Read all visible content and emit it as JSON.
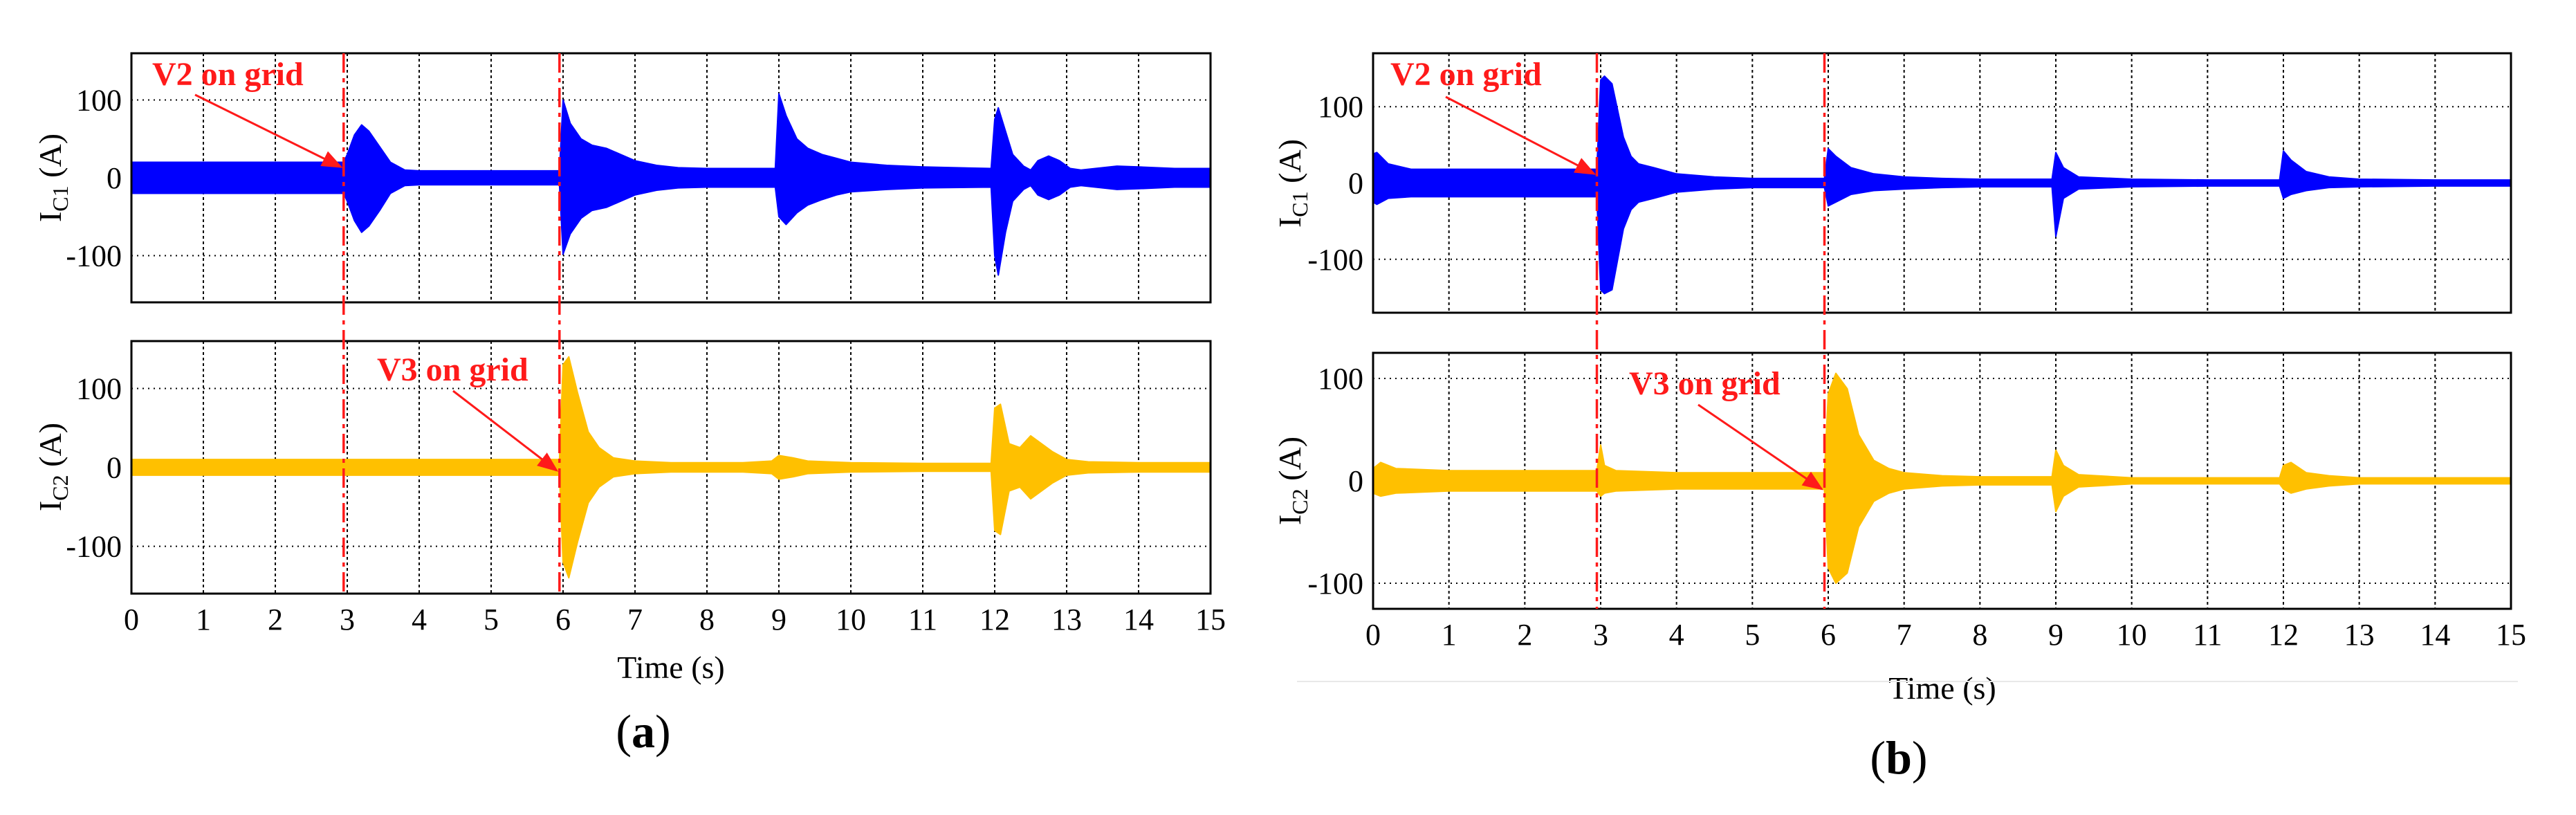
{
  "figure": {
    "panel_a": "a",
    "panel_b": "b"
  },
  "colors": {
    "ic1": "#0000ff",
    "ic2": "#ffc000",
    "marker": "#ff1a1a",
    "grid": "#555555"
  },
  "chart_data": [
    {
      "id": "a-top",
      "panel": "a",
      "type": "line",
      "title": "",
      "ylabel": {
        "main": "I",
        "sub": "C1",
        "unit": " (A)"
      },
      "xlabel": "",
      "xlim": [
        0,
        15
      ],
      "ylim": [
        -160,
        160
      ],
      "yticks": [
        -100,
        0,
        100
      ],
      "xticks": [],
      "grid": true,
      "series": [
        {
          "name": "IC1",
          "color": "#0000ff",
          "envelope_x": [
            0,
            2.95,
            3.0,
            3.1,
            3.2,
            3.3,
            3.45,
            3.6,
            3.8,
            4.0,
            5.95,
            6.0,
            6.1,
            6.25,
            6.4,
            6.6,
            6.8,
            7.0,
            7.3,
            7.6,
            8.0,
            8.95,
            9.0,
            9.1,
            9.25,
            9.4,
            9.6,
            9.8,
            10.0,
            10.5,
            11.0,
            11.95,
            12.0,
            12.05,
            12.15,
            12.25,
            12.4,
            12.5,
            12.6,
            12.75,
            12.9,
            13.05,
            13.2,
            13.4,
            13.7,
            14.0,
            14.5,
            15.0
          ],
          "envelope_y": [
            20,
            20,
            30,
            55,
            68,
            60,
            40,
            20,
            10,
            9,
            9,
            100,
            70,
            50,
            42,
            38,
            30,
            22,
            16,
            13,
            12,
            12,
            108,
            80,
            50,
            38,
            30,
            25,
            20,
            16,
            14,
            12,
            75,
            90,
            60,
            30,
            15,
            10,
            22,
            28,
            22,
            12,
            10,
            12,
            15,
            14,
            12,
            12
          ],
          "lower_y": [
            -20,
            -20,
            -30,
            -55,
            -70,
            -62,
            -42,
            -20,
            -10,
            -9,
            -9,
            -98,
            -72,
            -52,
            -42,
            -38,
            -30,
            -22,
            -16,
            -13,
            -12,
            -12,
            -50,
            -60,
            -45,
            -35,
            -28,
            -22,
            -18,
            -15,
            -13,
            -12,
            -100,
            -125,
            -70,
            -30,
            -15,
            -10,
            -22,
            -28,
            -22,
            -12,
            -10,
            -12,
            -15,
            -14,
            -12,
            -12
          ]
        }
      ],
      "annotations": [
        {
          "text": "V2 on grid",
          "target_x": 2.95,
          "target_y": 14
        }
      ]
    },
    {
      "id": "a-bottom",
      "panel": "a",
      "type": "line",
      "title": "",
      "ylabel": {
        "main": "I",
        "sub": "C2",
        "unit": " (A)"
      },
      "xlabel": "Time (s)",
      "xlim": [
        0,
        15
      ],
      "ylim": [
        -160,
        160
      ],
      "yticks": [
        -100,
        0,
        100
      ],
      "xticks": [
        0,
        1,
        2,
        3,
        4,
        5,
        6,
        7,
        8,
        9,
        10,
        11,
        12,
        13,
        14,
        15
      ],
      "grid": true,
      "series": [
        {
          "name": "IC2",
          "color": "#ffc000",
          "envelope_x": [
            0,
            5.95,
            6.0,
            6.08,
            6.2,
            6.35,
            6.5,
            6.7,
            7.0,
            7.5,
            8.0,
            8.5,
            8.9,
            9.0,
            9.2,
            9.4,
            10.0,
            11.0,
            11.95,
            12.0,
            12.08,
            12.2,
            12.35,
            12.5,
            12.65,
            12.8,
            13.0,
            13.3,
            14.0,
            15.0
          ],
          "envelope_y": [
            10,
            10,
            130,
            140,
            95,
            45,
            25,
            12,
            8,
            6,
            6,
            6,
            8,
            15,
            12,
            8,
            6,
            5,
            5,
            75,
            80,
            30,
            25,
            40,
            30,
            20,
            10,
            7,
            6,
            6
          ],
          "lower_y": [
            -10,
            -10,
            -120,
            -140,
            -95,
            -45,
            -25,
            -12,
            -8,
            -6,
            -6,
            -6,
            -8,
            -15,
            -12,
            -8,
            -6,
            -5,
            -5,
            -80,
            -85,
            -30,
            -25,
            -40,
            -30,
            -20,
            -10,
            -7,
            -6,
            -6
          ]
        }
      ],
      "annotations": [
        {
          "text": "V3 on grid",
          "target_x": 5.95,
          "target_y": -4
        }
      ]
    },
    {
      "id": "b-top",
      "panel": "b",
      "type": "line",
      "title": "",
      "ylabel": {
        "main": "I",
        "sub": "C1",
        "unit": " (A)"
      },
      "xlabel": "",
      "xlim": [
        0,
        15
      ],
      "ylim": [
        -170,
        170
      ],
      "yticks": [
        -100,
        0,
        100
      ],
      "xticks": [],
      "grid": true,
      "series": [
        {
          "name": "IC1",
          "color": "#0000ff",
          "envelope_x": [
            0,
            0.05,
            0.2,
            0.5,
            1.0,
            2.95,
            3.0,
            3.05,
            3.15,
            3.3,
            3.4,
            3.5,
            3.7,
            4.0,
            4.5,
            5.0,
            5.95,
            6.0,
            6.1,
            6.3,
            6.6,
            7.0,
            7.5,
            8.0,
            8.95,
            9.0,
            9.1,
            9.3,
            10.0,
            11.0,
            11.95,
            12.0,
            12.1,
            12.3,
            12.6,
            13.0,
            14.0,
            15.0
          ],
          "envelope_y": [
            38,
            40,
            25,
            18,
            18,
            18,
            135,
            140,
            130,
            60,
            35,
            25,
            20,
            12,
            8,
            6,
            6,
            45,
            35,
            20,
            12,
            8,
            6,
            5,
            5,
            40,
            20,
            8,
            5,
            4,
            4,
            42,
            30,
            15,
            8,
            5,
            4,
            4
          ],
          "lower_y": [
            -25,
            -28,
            -20,
            -18,
            -18,
            -18,
            -140,
            -145,
            -140,
            -60,
            -35,
            -25,
            -20,
            -12,
            -8,
            -6,
            -6,
            -30,
            -25,
            -15,
            -10,
            -8,
            -6,
            -5,
            -5,
            -70,
            -20,
            -8,
            -5,
            -4,
            -4,
            -20,
            -15,
            -10,
            -6,
            -5,
            -4,
            -4
          ]
        }
      ],
      "annotations": [
        {
          "text": "V2 on grid",
          "target_x": 2.95,
          "target_y": 12
        }
      ]
    },
    {
      "id": "b-bottom",
      "panel": "b",
      "type": "line",
      "title": "",
      "ylabel": {
        "main": "I",
        "sub": "C2",
        "unit": " (A)"
      },
      "xlabel": "Time (s)",
      "xlim": [
        0,
        15
      ],
      "ylim": [
        -125,
        125
      ],
      "yticks": [
        -100,
        0,
        100
      ],
      "xticks": [
        0,
        1,
        2,
        3,
        4,
        5,
        6,
        7,
        8,
        9,
        10,
        11,
        12,
        13,
        14,
        15
      ],
      "grid": true,
      "series": [
        {
          "name": "IC2",
          "color": "#ffc000",
          "envelope_x": [
            0,
            0.1,
            0.3,
            1.0,
            2.95,
            3.0,
            3.05,
            3.2,
            4.0,
            5.95,
            6.0,
            6.1,
            6.25,
            6.4,
            6.6,
            6.8,
            7.0,
            7.5,
            8.0,
            8.95,
            9.0,
            9.1,
            9.3,
            10.0,
            11.0,
            11.95,
            12.0,
            12.1,
            12.3,
            12.6,
            13.0,
            14.0,
            15.0
          ],
          "envelope_y": [
            12,
            18,
            12,
            10,
            10,
            35,
            15,
            10,
            8,
            8,
            85,
            105,
            90,
            45,
            20,
            12,
            8,
            5,
            4,
            4,
            30,
            15,
            6,
            3,
            3,
            3,
            15,
            18,
            8,
            5,
            3,
            3,
            3
          ],
          "lower_y": [
            -12,
            -15,
            -12,
            -10,
            -10,
            -15,
            -12,
            -10,
            -8,
            -8,
            -85,
            -100,
            -90,
            -45,
            -20,
            -12,
            -8,
            -5,
            -4,
            -4,
            -30,
            -15,
            -6,
            -3,
            -3,
            -3,
            -8,
            -12,
            -8,
            -5,
            -3,
            -3,
            -3
          ]
        }
      ],
      "annotations": [
        {
          "text": "V3 on grid",
          "target_x": 5.95,
          "target_y": -8
        }
      ]
    }
  ]
}
